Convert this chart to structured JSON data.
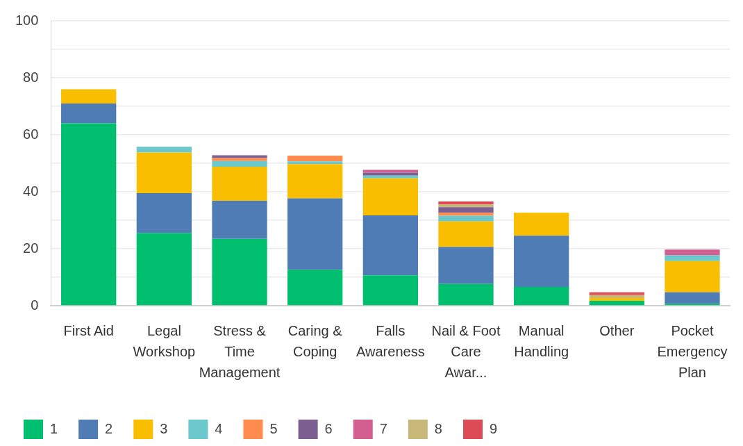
{
  "chart_data": {
    "type": "bar",
    "stacked": true,
    "categories": [
      "First Aid",
      "Legal Workshop",
      "Stress & Time Management",
      "Caring & Coping",
      "Falls Awareness",
      "Nail & Foot Care Awar...",
      "Manual Handling",
      "Other",
      "Pocket Emergency Plan"
    ],
    "series": [
      {
        "name": "1",
        "color": "#00bf6f",
        "values": [
          64,
          25.5,
          23.5,
          12.6,
          10.7,
          7.6,
          6.6,
          1.7,
          0.7
        ]
      },
      {
        "name": "2",
        "color": "#507cb6",
        "values": [
          7,
          14,
          13.3,
          25.1,
          21,
          13,
          18,
          0,
          4
        ]
      },
      {
        "name": "3",
        "color": "#f9be00",
        "values": [
          5,
          14.3,
          12,
          12,
          13,
          9,
          8,
          1,
          11
        ]
      },
      {
        "name": "4",
        "color": "#6bc8cd",
        "values": [
          0,
          2,
          2,
          1,
          1,
          2,
          0,
          0,
          2
        ]
      },
      {
        "name": "5",
        "color": "#ff8b4f",
        "values": [
          0,
          0,
          1,
          2,
          0,
          1,
          0,
          0,
          0
        ]
      },
      {
        "name": "6",
        "color": "#7d5e90",
        "values": [
          0,
          0,
          1,
          0,
          1,
          2,
          0,
          0,
          0
        ]
      },
      {
        "name": "7",
        "color": "#d25f90",
        "values": [
          0,
          0,
          0,
          0,
          1,
          0,
          0,
          0,
          2
        ]
      },
      {
        "name": "8",
        "color": "#c7b879",
        "values": [
          0,
          0,
          0,
          0,
          0,
          1,
          0,
          1,
          0
        ]
      },
      {
        "name": "9",
        "color": "#dd4b57",
        "values": [
          0,
          0,
          0,
          0,
          0,
          1,
          0,
          1,
          0
        ]
      }
    ],
    "ylim": [
      0,
      100
    ],
    "yticks": [
      0,
      {
        "value": 10,
        "label": null
      },
      20,
      {
        "value": 30,
        "label": null
      },
      40,
      {
        "value": 50,
        "label": null
      },
      60,
      {
        "value": 70,
        "label": null
      },
      80,
      {
        "value": 90,
        "label": null
      },
      100
    ],
    "grid": "y",
    "legend": "bottom left"
  }
}
